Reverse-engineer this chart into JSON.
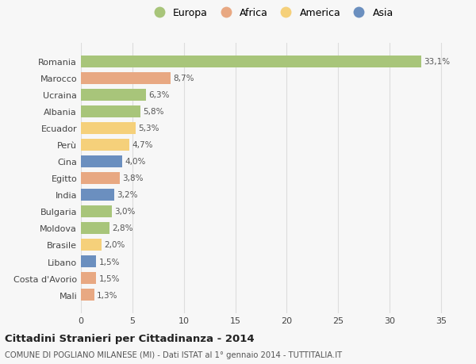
{
  "countries": [
    "Romania",
    "Marocco",
    "Ucraina",
    "Albania",
    "Ecuador",
    "Perù",
    "Cina",
    "Egitto",
    "India",
    "Bulgaria",
    "Moldova",
    "Brasile",
    "Libano",
    "Costa d'Avorio",
    "Mali"
  ],
  "values": [
    33.1,
    8.7,
    6.3,
    5.8,
    5.3,
    4.7,
    4.0,
    3.8,
    3.2,
    3.0,
    2.8,
    2.0,
    1.5,
    1.5,
    1.3
  ],
  "labels": [
    "33,1%",
    "8,7%",
    "6,3%",
    "5,8%",
    "5,3%",
    "4,7%",
    "4,0%",
    "3,8%",
    "3,2%",
    "3,0%",
    "2,8%",
    "2,0%",
    "1,5%",
    "1,5%",
    "1,3%"
  ],
  "continents": [
    "Europa",
    "Africa",
    "Europa",
    "Europa",
    "America",
    "America",
    "Asia",
    "Africa",
    "Asia",
    "Europa",
    "Europa",
    "America",
    "Asia",
    "Africa",
    "Africa"
  ],
  "colors": {
    "Europa": "#a8c57a",
    "Africa": "#e8a882",
    "America": "#f5d07a",
    "Asia": "#6b8fbf"
  },
  "legend_order": [
    "Europa",
    "Africa",
    "America",
    "Asia"
  ],
  "title": "Cittadini Stranieri per Cittadinanza - 2014",
  "subtitle": "COMUNE DI POGLIANO MILANESE (MI) - Dati ISTAT al 1° gennaio 2014 - TUTTITALIA.IT",
  "xlim": [
    0,
    37
  ],
  "xticks": [
    0,
    5,
    10,
    15,
    20,
    25,
    30,
    35
  ],
  "bg_color": "#f7f7f7",
  "grid_color": "#dddddd",
  "bar_height": 0.72
}
